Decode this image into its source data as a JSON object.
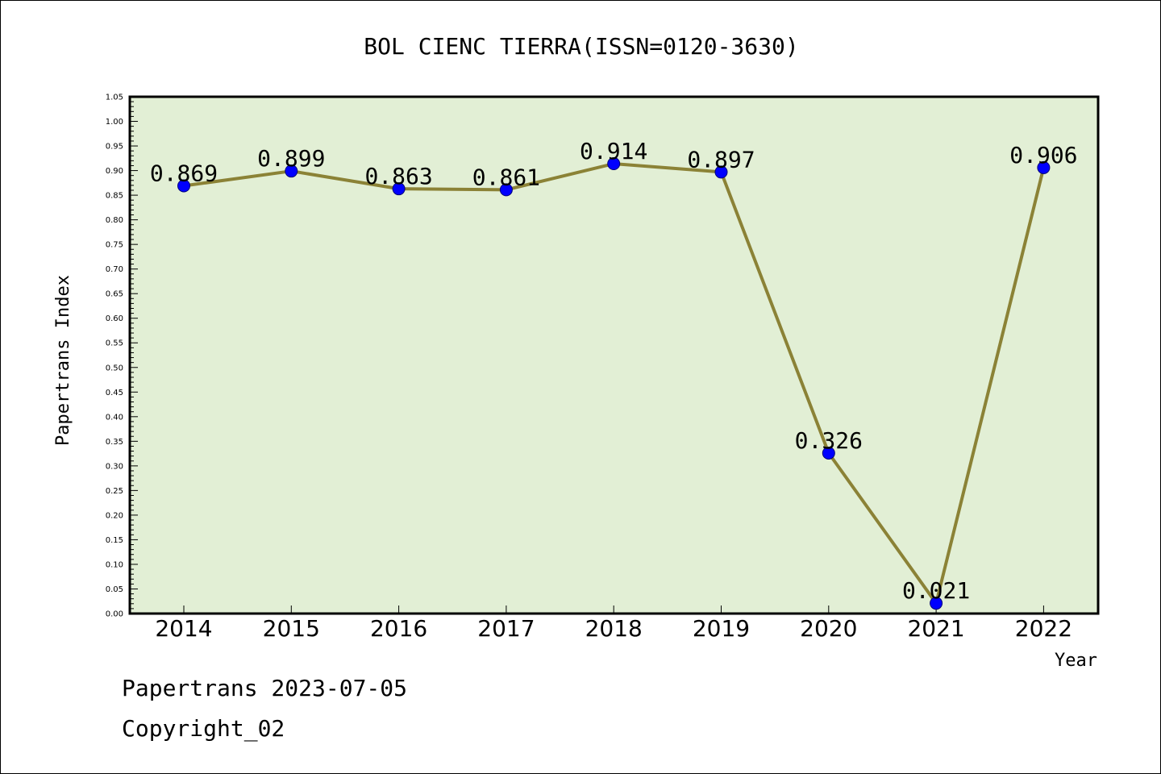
{
  "colors": {
    "plot_background": "#e2efd5",
    "line": "#8b8236",
    "marker": "#0000ff",
    "marker_edge": "#00007a"
  },
  "chart_data": {
    "type": "line",
    "title": "BOL CIENC TIERRA(ISSN=0120-3630)",
    "xlabel": "Year",
    "ylabel": "Papertrans Index",
    "categories": [
      "2014",
      "2015",
      "2016",
      "2017",
      "2018",
      "2019",
      "2020",
      "2021",
      "2022"
    ],
    "values": [
      0.869,
      0.899,
      0.863,
      0.861,
      0.914,
      0.897,
      0.326,
      0.021,
      0.906
    ],
    "data_labels": [
      "0.869",
      "0.899",
      "0.863",
      "0.861",
      "0.914",
      "0.897",
      "0.326",
      "0.021",
      "0.906"
    ],
    "ylim": [
      0,
      1.05
    ],
    "y_ticks": [
      "0.00",
      "0.05",
      "0.10",
      "0.15",
      "0.20",
      "0.25",
      "0.30",
      "0.35",
      "0.40",
      "0.45",
      "0.50",
      "0.55",
      "0.60",
      "0.65",
      "0.70",
      "0.75",
      "0.80",
      "0.85",
      "0.90",
      "0.95",
      "1.00",
      "1.05"
    ],
    "grid": false,
    "legend": "none"
  },
  "footer": {
    "source": "Papertrans 2023-07-05",
    "copyright": "Copyright_02"
  }
}
